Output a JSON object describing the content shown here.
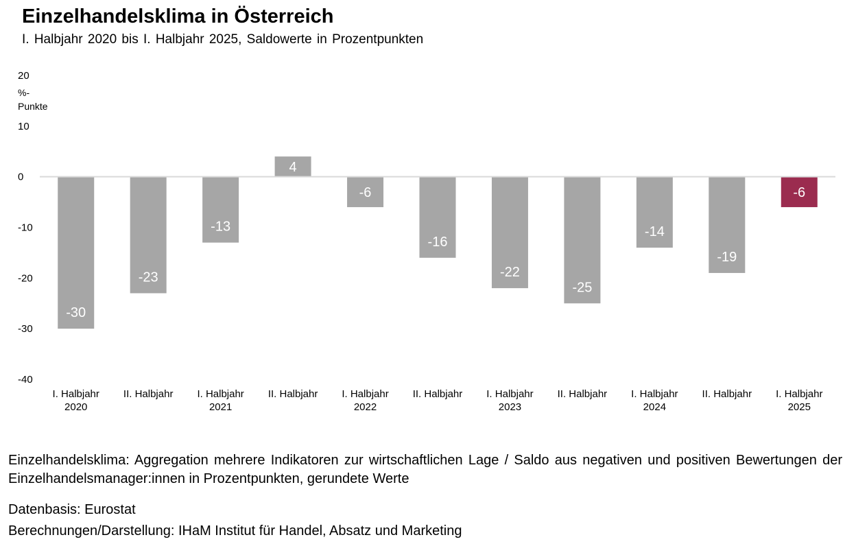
{
  "header": {
    "title": "Einzelhandelsklima in Österreich",
    "subtitle": "I. Halbjahr 2020 bis I. Halbjahr 2025, Saldowerte in Prozentpunkten"
  },
  "chart_data": {
    "type": "bar",
    "title": "Einzelhandelsklima in Österreich",
    "subtitle": "I. Halbjahr 2020 bis I. Halbjahr 2025, Saldowerte in Prozentpunkten",
    "xlabel": "",
    "ylabel": "%-Punkte",
    "ylabel_lines": [
      "%-",
      "Punkte"
    ],
    "ylim": [
      -40,
      20
    ],
    "yticks": [
      20,
      10,
      0,
      -10,
      -20,
      -30,
      -40
    ],
    "grid": false,
    "legend": "none",
    "categories": [
      {
        "line1": "I. Halbjahr",
        "line2": "2020"
      },
      {
        "line1": "II. Halbjahr",
        "line2": ""
      },
      {
        "line1": "I. Halbjahr",
        "line2": "2021"
      },
      {
        "line1": "II. Halbjahr",
        "line2": ""
      },
      {
        "line1": "I. Halbjahr",
        "line2": "2022"
      },
      {
        "line1": "II. Halbjahr",
        "line2": ""
      },
      {
        "line1": "I. Halbjahr",
        "line2": "2023"
      },
      {
        "line1": "II. Halbjahr",
        "line2": ""
      },
      {
        "line1": "I. Halbjahr",
        "line2": "2024"
      },
      {
        "line1": "II. Halbjahr",
        "line2": ""
      },
      {
        "line1": "I. Halbjahr",
        "line2": "2025"
      }
    ],
    "values": [
      -30,
      -23,
      -13,
      4,
      -6,
      -16,
      -22,
      -25,
      -14,
      -19,
      -6
    ],
    "colors": {
      "default": "#a6a6a6",
      "highlight": "#9b2c4f",
      "axis": "#d9d9d9",
      "label": "#ffffff"
    },
    "highlight_index": 10
  },
  "footer": {
    "note": "Einzelhandelsklima: Aggregation mehrere Indikatoren zur wirtschaftlichen Lage / Saldo aus negativen und positiven Bewertungen der Einzelhandelsmanager:innen in Prozentpunkten, gerundete Werte",
    "source": "Datenbasis: Eurostat",
    "credit": "Berechnungen/Darstellung: IHaM Institut für Handel, Absatz und Marketing"
  }
}
